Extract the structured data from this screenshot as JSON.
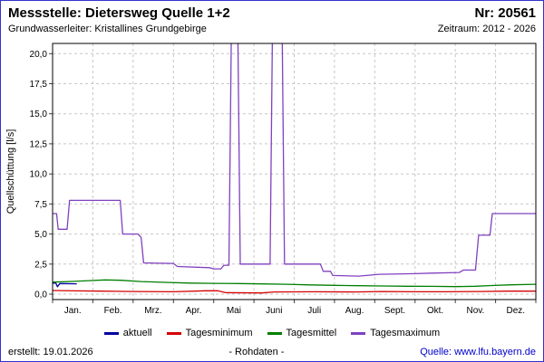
{
  "header": {
    "title": "Messstelle: Dietersweg Quelle 1+2",
    "number": "Nr: 20561",
    "subtitle_left": "Grundwasserleiter: Kristallines Grundgebirge",
    "subtitle_right": "Zeitraum: 2012 - 2026"
  },
  "footer": {
    "created": "erstellt: 19.01.2026",
    "center": "- Rohdaten -",
    "source": "Quelle: www.lfu.bayern.de"
  },
  "colors": {
    "page_border": "#3333cc",
    "gridline": "#c6c6c6",
    "frame": "#000000",
    "link": "#0000cc"
  },
  "chart_data": {
    "type": "line",
    "title": "",
    "xlabel": "",
    "ylabel": "Quellschüttung [l/s]",
    "ylim": [
      -0.45,
      20.85
    ],
    "xlim": [
      0,
      12
    ],
    "grid": true,
    "legend_position": "bottom",
    "yticks": [
      0,
      2.5,
      5,
      7.5,
      10,
      12.5,
      15,
      17.5,
      20
    ],
    "ytick_labels": [
      "0,0",
      "2,5",
      "5,0",
      "7,5",
      "10,0",
      "12,5",
      "15,0",
      "17,5",
      "20,0"
    ],
    "month_labels": [
      "Jan.",
      "Feb.",
      "Mrz.",
      "Apr.",
      "Mai",
      "Juni",
      "Juli",
      "Aug.",
      "Sept.",
      "Okt.",
      "Nov.",
      "Dez."
    ],
    "series": [
      {
        "name": "aktuell",
        "color": "#0000a0",
        "points": [
          [
            0,
            0.92
          ],
          [
            0.08,
            0.92
          ],
          [
            0.12,
            0.62
          ],
          [
            0.18,
            0.88
          ],
          [
            0.6,
            0.86
          ]
        ]
      },
      {
        "name": "Tagesminimum",
        "color": "#d40000",
        "points": [
          [
            0,
            0.3
          ],
          [
            0.6,
            0.27
          ],
          [
            1.2,
            0.25
          ],
          [
            2.0,
            0.22
          ],
          [
            3.0,
            0.2
          ],
          [
            3.8,
            0.28
          ],
          [
            4.1,
            0.28
          ],
          [
            4.3,
            0.12
          ],
          [
            5.2,
            0.1
          ],
          [
            5.5,
            0.18
          ],
          [
            6.5,
            0.2
          ],
          [
            7.5,
            0.18
          ],
          [
            8.2,
            0.22
          ],
          [
            9.0,
            0.2
          ],
          [
            9.8,
            0.2
          ],
          [
            10.6,
            0.22
          ],
          [
            11.3,
            0.25
          ],
          [
            12,
            0.25
          ]
        ]
      },
      {
        "name": "Tagesmittel",
        "color": "#007f00",
        "points": [
          [
            0,
            1.0
          ],
          [
            0.4,
            1.05
          ],
          [
            0.9,
            1.12
          ],
          [
            1.3,
            1.18
          ],
          [
            1.7,
            1.15
          ],
          [
            2.2,
            1.05
          ],
          [
            2.8,
            0.98
          ],
          [
            3.4,
            0.92
          ],
          [
            4.0,
            0.9
          ],
          [
            4.6,
            0.88
          ],
          [
            5.2,
            0.85
          ],
          [
            5.8,
            0.82
          ],
          [
            6.4,
            0.77
          ],
          [
            7.0,
            0.73
          ],
          [
            7.6,
            0.7
          ],
          [
            8.2,
            0.68
          ],
          [
            8.8,
            0.66
          ],
          [
            9.4,
            0.65
          ],
          [
            10.0,
            0.63
          ],
          [
            10.5,
            0.66
          ],
          [
            10.9,
            0.72
          ],
          [
            11.4,
            0.78
          ],
          [
            12,
            0.82
          ]
        ]
      },
      {
        "name": "Tagesmaximum",
        "color": "#8040c0",
        "points": [
          [
            0,
            6.7
          ],
          [
            0.1,
            6.7
          ],
          [
            0.14,
            5.4
          ],
          [
            0.36,
            5.4
          ],
          [
            0.42,
            7.8
          ],
          [
            1.68,
            7.8
          ],
          [
            1.74,
            5.0
          ],
          [
            2.12,
            5.0
          ],
          [
            2.2,
            4.7
          ],
          [
            2.26,
            2.6
          ],
          [
            3.0,
            2.55
          ],
          [
            3.1,
            2.3
          ],
          [
            3.9,
            2.2
          ],
          [
            4.0,
            2.1
          ],
          [
            4.18,
            2.1
          ],
          [
            4.25,
            2.4
          ],
          [
            4.38,
            2.4
          ],
          [
            4.44,
            22
          ],
          [
            4.6,
            22
          ],
          [
            4.66,
            2.5
          ],
          [
            5.4,
            2.5
          ],
          [
            5.46,
            22
          ],
          [
            5.7,
            22
          ],
          [
            5.76,
            2.5
          ],
          [
            6.65,
            2.5
          ],
          [
            6.72,
            1.9
          ],
          [
            6.9,
            1.9
          ],
          [
            6.96,
            1.55
          ],
          [
            7.6,
            1.5
          ],
          [
            7.8,
            1.55
          ],
          [
            8.1,
            1.65
          ],
          [
            9.0,
            1.7
          ],
          [
            9.4,
            1.75
          ],
          [
            10.1,
            1.8
          ],
          [
            10.2,
            2.0
          ],
          [
            10.5,
            2.0
          ],
          [
            10.58,
            4.9
          ],
          [
            10.86,
            4.9
          ],
          [
            10.92,
            6.7
          ],
          [
            12,
            6.7
          ]
        ]
      }
    ]
  }
}
